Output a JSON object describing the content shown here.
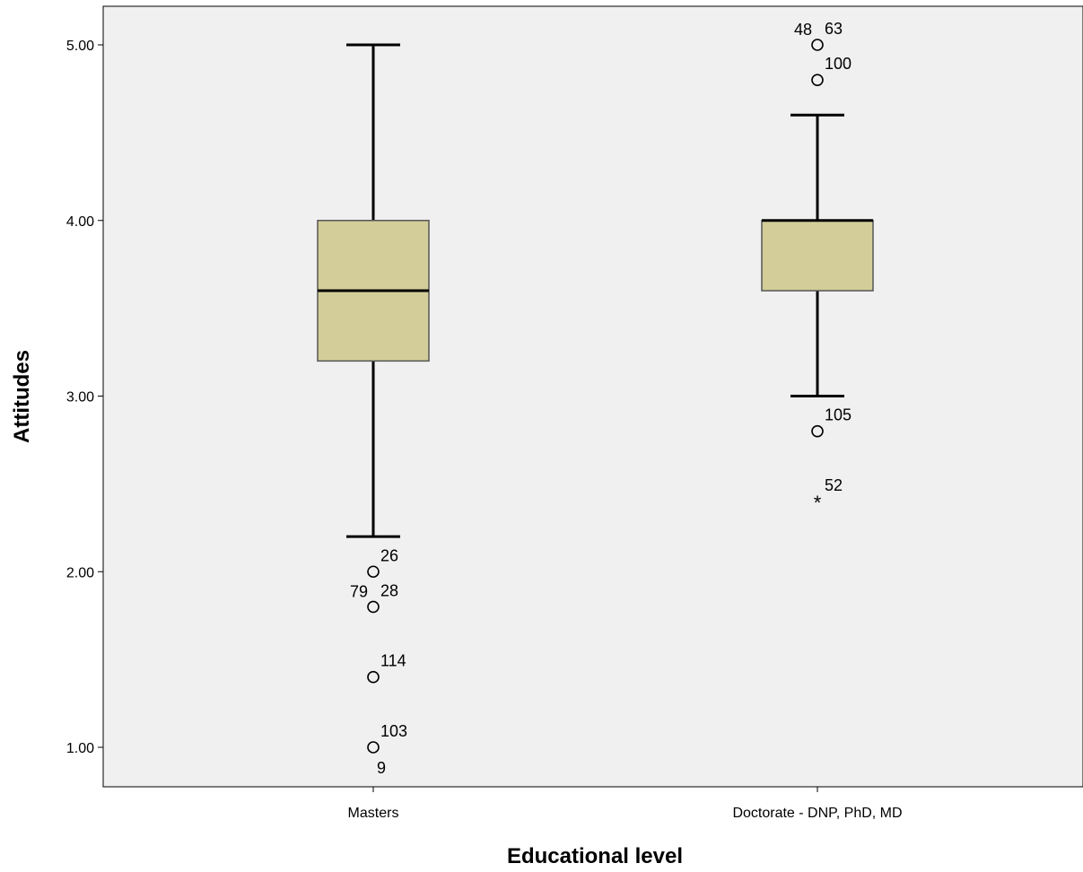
{
  "chart_data": {
    "type": "boxplot",
    "xlabel": "Educational level",
    "ylabel": "Attitudes",
    "categories": [
      "Masters",
      "Doctorate - DNP, PhD, MD"
    ],
    "ylim": [
      0.78,
      5.21
    ],
    "yticks": [
      {
        "value": 1.0,
        "label": "1.00"
      },
      {
        "value": 2.0,
        "label": "2.00"
      },
      {
        "value": 3.0,
        "label": "3.00"
      },
      {
        "value": 4.0,
        "label": "4.00"
      },
      {
        "value": 5.0,
        "label": "5.00"
      }
    ],
    "grid": false,
    "background_color": "#f0f0f0",
    "box_color": "#d3ce99",
    "boxes": [
      {
        "category": "Masters",
        "whisker_low": 2.2,
        "q1": 3.2,
        "median": 3.6,
        "q3": 4.0,
        "whisker_high": 5.0,
        "outliers": [
          {
            "value": 2.0,
            "marker": "circle",
            "labels": [
              {
                "text": "26",
                "side": "right"
              }
            ]
          },
          {
            "value": 1.8,
            "marker": "circle",
            "labels": [
              {
                "text": "79",
                "side": "left"
              },
              {
                "text": "28",
                "side": "right"
              }
            ]
          },
          {
            "value": 1.4,
            "marker": "circle",
            "labels": [
              {
                "text": "114",
                "side": "right"
              }
            ]
          },
          {
            "value": 1.0,
            "marker": "circle",
            "labels": [
              {
                "text": "103",
                "side": "right"
              },
              {
                "text": "9",
                "side": "below"
              }
            ]
          }
        ]
      },
      {
        "category": "Doctorate - DNP, PhD, MD",
        "whisker_low": 3.0,
        "q1": 3.6,
        "median": 4.0,
        "q3": 4.0,
        "whisker_high": 4.6,
        "outliers": [
          {
            "value": 5.0,
            "marker": "circle",
            "labels": [
              {
                "text": "48",
                "side": "left"
              },
              {
                "text": "63",
                "side": "right"
              }
            ]
          },
          {
            "value": 4.8,
            "marker": "circle",
            "labels": [
              {
                "text": "100",
                "side": "right"
              }
            ]
          },
          {
            "value": 2.8,
            "marker": "circle",
            "labels": [
              {
                "text": "105",
                "side": "right"
              }
            ]
          },
          {
            "value": 2.4,
            "marker": "star",
            "labels": [
              {
                "text": "52",
                "side": "right"
              }
            ]
          }
        ]
      }
    ]
  }
}
